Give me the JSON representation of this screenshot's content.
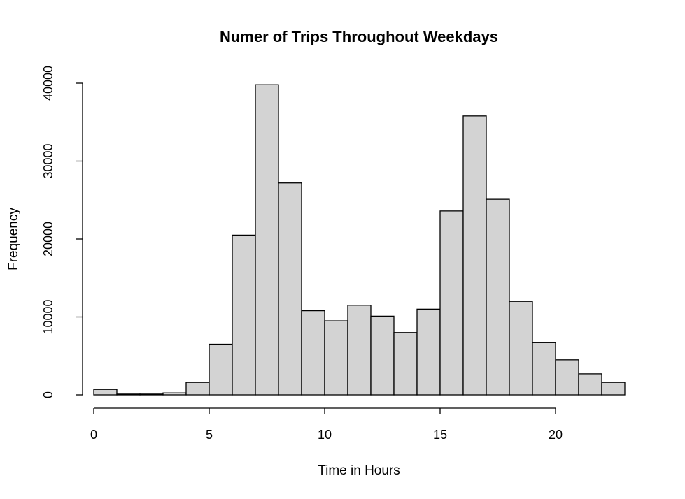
{
  "chart_data": {
    "type": "bar",
    "title": "Numer of Trips Throughout Weekdays",
    "xlabel": "Time in Hours",
    "ylabel": "Frequency",
    "bins": [
      [
        0,
        1
      ],
      [
        1,
        2
      ],
      [
        2,
        3
      ],
      [
        3,
        4
      ],
      [
        4,
        5
      ],
      [
        5,
        6
      ],
      [
        6,
        7
      ],
      [
        7,
        8
      ],
      [
        8,
        9
      ],
      [
        9,
        10
      ],
      [
        10,
        11
      ],
      [
        11,
        12
      ],
      [
        12,
        13
      ],
      [
        13,
        14
      ],
      [
        14,
        15
      ],
      [
        15,
        16
      ],
      [
        16,
        17
      ],
      [
        17,
        18
      ],
      [
        18,
        19
      ],
      [
        19,
        20
      ],
      [
        20,
        21
      ],
      [
        21,
        22
      ],
      [
        22,
        23
      ]
    ],
    "values": [
      700,
      100,
      100,
      250,
      1600,
      6500,
      20500,
      39800,
      27200,
      10800,
      9500,
      11500,
      10100,
      8000,
      11000,
      23600,
      35800,
      25100,
      12000,
      6700,
      4500,
      2700,
      1600
    ],
    "xlim": [
      0,
      23
    ],
    "ylim": [
      0,
      40000
    ],
    "xticks": [
      0,
      5,
      10,
      15,
      20
    ],
    "yticks": [
      0,
      10000,
      20000,
      30000,
      40000
    ],
    "grid": false,
    "bar_color": "#D3D3D3",
    "border_color": "#000000"
  }
}
